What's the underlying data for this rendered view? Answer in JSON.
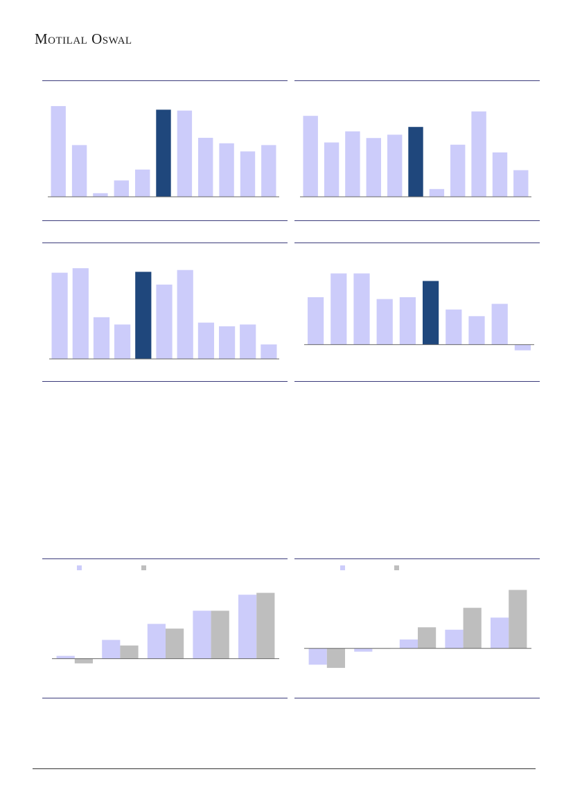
{
  "header": {
    "brand": "Motilal Oswal"
  },
  "colors": {
    "light": "#ccccfa",
    "highlight": "#1f477c",
    "gray": "#bebebe",
    "axis": "#666666",
    "rule": "#3a3a7a"
  },
  "chart_data": [
    {
      "type": "bar",
      "highlight_index": 5,
      "values": [
        100,
        57,
        4,
        18,
        30,
        96,
        95,
        65,
        59,
        50,
        57
      ],
      "ylim": [
        0,
        110
      ]
    },
    {
      "type": "bar",
      "highlight_index": 5,
      "values": [
        73,
        49,
        59,
        53,
        56,
        63,
        7,
        47,
        77,
        40,
        24
      ],
      "ylim": [
        0,
        90
      ]
    },
    {
      "type": "bar",
      "highlight_index": 4,
      "values": [
        95,
        100,
        46,
        38,
        96,
        82,
        98,
        40,
        36,
        38,
        16
      ],
      "ylim": [
        0,
        110
      ]
    },
    {
      "type": "bar",
      "highlight_index": 5,
      "values": [
        50,
        75,
        75,
        48,
        50,
        67,
        37,
        30,
        43,
        -6
      ],
      "ylim": [
        -15,
        90
      ]
    },
    {
      "type": "bar",
      "series": [
        {
          "values": [
            3,
            20,
            37,
            51,
            68
          ]
        },
        {
          "values": [
            -5,
            14,
            32,
            51,
            70
          ]
        }
      ],
      "ylim": [
        -15,
        80
      ]
    },
    {
      "type": "bar",
      "series": [
        {
          "values": [
            -20,
            -4,
            11,
            23,
            38
          ]
        },
        {
          "values": [
            -24,
            0,
            26,
            50,
            72
          ]
        }
      ],
      "ylim": [
        -30,
        80
      ]
    }
  ]
}
